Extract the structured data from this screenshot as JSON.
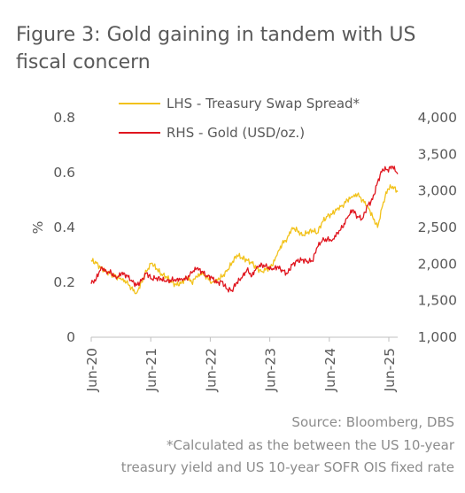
{
  "title": "Figure 3:  Gold gaining in tandem with US fiscal concern",
  "source": "Source: Bloomberg, DBS",
  "footnote": "*Calculated as the between the US 10-year treasury yield and US 10-year SOFR OIS fixed rate",
  "footnote_line1": "*Calculated as the between the US 10-year",
  "footnote_line2": "treasury yield and US 10-year SOFR OIS fixed rate",
  "colors": {
    "lhs": "#F2C21B",
    "rhs": "#E0161F",
    "axis": "#BFBFBF",
    "text": "#595959"
  },
  "chart_data": {
    "type": "line",
    "title": "Figure 3:  Gold gaining in tandem with US fiscal concern",
    "xlabel": "",
    "ylabel_left": "%",
    "ylabel_right": "",
    "x_ticks": [
      "Jun-20",
      "Jun-21",
      "Jun-22",
      "Jun-23",
      "Jun-24",
      "Jun-25"
    ],
    "y_left": {
      "lim": [
        0,
        0.8
      ],
      "ticks": [
        "0",
        "0.2",
        "0.4",
        "0.6",
        "0.8"
      ]
    },
    "y_right": {
      "lim": [
        1000,
        4000
      ],
      "ticks": [
        "1,000",
        "1,500",
        "2,000",
        "2,500",
        "3,000",
        "3,500",
        "4,000"
      ]
    },
    "grid": false,
    "legend_position": "top",
    "series": [
      {
        "name": "LHS - Treasury Swap Spread*",
        "axis": "left",
        "color": "#F2C21B",
        "points": [
          [
            "2020-06",
            0.28
          ],
          [
            "2020-07",
            0.27
          ],
          [
            "2020-08",
            0.25
          ],
          [
            "2020-09",
            0.24
          ],
          [
            "2020-10",
            0.23
          ],
          [
            "2020-11",
            0.22
          ],
          [
            "2020-12",
            0.21
          ],
          [
            "2021-01",
            0.2
          ],
          [
            "2021-02",
            0.18
          ],
          [
            "2021-03",
            0.16
          ],
          [
            "2021-04",
            0.2
          ],
          [
            "2021-05",
            0.24
          ],
          [
            "2021-06",
            0.27
          ],
          [
            "2021-07",
            0.25
          ],
          [
            "2021-08",
            0.23
          ],
          [
            "2021-09",
            0.22
          ],
          [
            "2021-10",
            0.2
          ],
          [
            "2021-11",
            0.19
          ],
          [
            "2021-12",
            0.2
          ],
          [
            "2022-01",
            0.22
          ],
          [
            "2022-02",
            0.2
          ],
          [
            "2022-03",
            0.22
          ],
          [
            "2022-04",
            0.23
          ],
          [
            "2022-05",
            0.22
          ],
          [
            "2022-06",
            0.2
          ],
          [
            "2022-07",
            0.21
          ],
          [
            "2022-08",
            0.22
          ],
          [
            "2022-09",
            0.24
          ],
          [
            "2022-10",
            0.27
          ],
          [
            "2022-11",
            0.3
          ],
          [
            "2022-12",
            0.29
          ],
          [
            "2023-01",
            0.28
          ],
          [
            "2023-02",
            0.27
          ],
          [
            "2023-03",
            0.25
          ],
          [
            "2023-04",
            0.24
          ],
          [
            "2023-05",
            0.25
          ],
          [
            "2023-06",
            0.26
          ],
          [
            "2023-07",
            0.3
          ],
          [
            "2023-08",
            0.34
          ],
          [
            "2023-09",
            0.36
          ],
          [
            "2023-10",
            0.4
          ],
          [
            "2023-11",
            0.39
          ],
          [
            "2023-12",
            0.37
          ],
          [
            "2024-01",
            0.38
          ],
          [
            "2024-02",
            0.39
          ],
          [
            "2024-03",
            0.38
          ],
          [
            "2024-04",
            0.42
          ],
          [
            "2024-05",
            0.44
          ],
          [
            "2024-06",
            0.45
          ],
          [
            "2024-07",
            0.47
          ],
          [
            "2024-08",
            0.48
          ],
          [
            "2024-09",
            0.5
          ],
          [
            "2024-10",
            0.51
          ],
          [
            "2024-11",
            0.52
          ],
          [
            "2024-12",
            0.5
          ],
          [
            "2025-01",
            0.48
          ],
          [
            "2025-02",
            0.44
          ],
          [
            "2025-03",
            0.4
          ],
          [
            "2025-04",
            0.48
          ],
          [
            "2025-05",
            0.54
          ],
          [
            "2025-06",
            0.55
          ],
          [
            "2025-07",
            0.53
          ]
        ]
      },
      {
        "name": "RHS - Gold (USD/oz.)",
        "axis": "right",
        "color": "#E0161F",
        "points": [
          [
            "2020-06",
            1730
          ],
          [
            "2020-07",
            1800
          ],
          [
            "2020-08",
            1960
          ],
          [
            "2020-09",
            1900
          ],
          [
            "2020-10",
            1880
          ],
          [
            "2020-11",
            1800
          ],
          [
            "2020-12",
            1870
          ],
          [
            "2021-01",
            1850
          ],
          [
            "2021-02",
            1780
          ],
          [
            "2021-03",
            1710
          ],
          [
            "2021-04",
            1770
          ],
          [
            "2021-05",
            1880
          ],
          [
            "2021-06",
            1800
          ],
          [
            "2021-07",
            1810
          ],
          [
            "2021-08",
            1790
          ],
          [
            "2021-09",
            1760
          ],
          [
            "2021-10",
            1780
          ],
          [
            "2021-11",
            1790
          ],
          [
            "2021-12",
            1800
          ],
          [
            "2022-01",
            1800
          ],
          [
            "2022-02",
            1880
          ],
          [
            "2022-03",
            1940
          ],
          [
            "2022-04",
            1900
          ],
          [
            "2022-05",
            1840
          ],
          [
            "2022-06",
            1820
          ],
          [
            "2022-07",
            1740
          ],
          [
            "2022-08",
            1760
          ],
          [
            "2022-09",
            1660
          ],
          [
            "2022-10",
            1640
          ],
          [
            "2022-11",
            1750
          ],
          [
            "2022-12",
            1810
          ],
          [
            "2023-01",
            1920
          ],
          [
            "2023-02",
            1840
          ],
          [
            "2023-03",
            1970
          ],
          [
            "2023-04",
            1990
          ],
          [
            "2023-05",
            1960
          ],
          [
            "2023-06",
            1920
          ],
          [
            "2023-07",
            1960
          ],
          [
            "2023-08",
            1920
          ],
          [
            "2023-09",
            1870
          ],
          [
            "2023-10",
            1990
          ],
          [
            "2023-11",
            2040
          ],
          [
            "2023-12",
            2060
          ],
          [
            "2024-01",
            2040
          ],
          [
            "2024-02",
            2040
          ],
          [
            "2024-03",
            2230
          ],
          [
            "2024-04",
            2320
          ],
          [
            "2024-05",
            2340
          ],
          [
            "2024-06",
            2330
          ],
          [
            "2024-07",
            2430
          ],
          [
            "2024-08",
            2500
          ],
          [
            "2024-09",
            2630
          ],
          [
            "2024-10",
            2740
          ],
          [
            "2024-11",
            2650
          ],
          [
            "2024-12",
            2620
          ],
          [
            "2025-01",
            2800
          ],
          [
            "2025-02",
            2880
          ],
          [
            "2025-03",
            3120
          ],
          [
            "2025-04",
            3300
          ],
          [
            "2025-05",
            3290
          ],
          [
            "2025-06",
            3330
          ],
          [
            "2025-07",
            3230
          ]
        ]
      }
    ]
  }
}
